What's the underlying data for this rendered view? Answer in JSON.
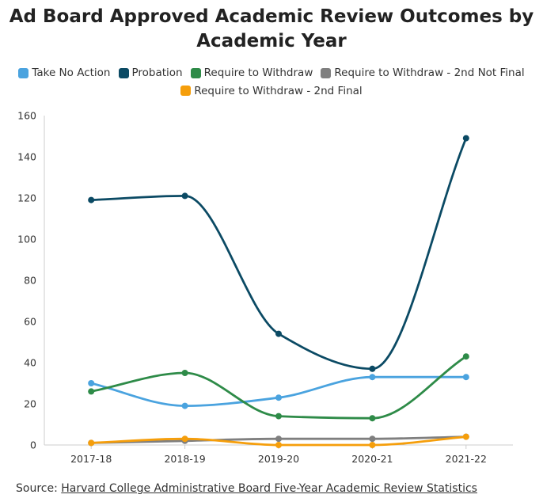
{
  "chart_data": {
    "type": "line",
    "title": "Ad Board Approved Academic Review Outcomes by Academic Year",
    "xlabel": "",
    "ylabel": "",
    "categories": [
      "2017-18",
      "2018-19",
      "2019-20",
      "2020-21",
      "2021-22"
    ],
    "ylim": [
      0,
      160
    ],
    "yticks": [
      0,
      20,
      40,
      60,
      80,
      100,
      120,
      140,
      160
    ],
    "grid": false,
    "legend_position": "top-center",
    "series": [
      {
        "name": "Take No Action",
        "color": "#4aa3df",
        "values": [
          30,
          19,
          23,
          33,
          33
        ]
      },
      {
        "name": "Probation",
        "color": "#0b4a64",
        "values": [
          119,
          121,
          54,
          37,
          149
        ]
      },
      {
        "name": "Require to Withdraw",
        "color": "#2e8b48",
        "values": [
          26,
          35,
          14,
          13,
          43
        ]
      },
      {
        "name": "Require to Withdraw - 2nd Not Final",
        "color": "#7f7f7f",
        "values": [
          1,
          2,
          3,
          3,
          4
        ]
      },
      {
        "name": "Require to Withdraw - 2nd Final",
        "color": "#f59e0b",
        "values": [
          1,
          3,
          0,
          0,
          4
        ]
      }
    ]
  },
  "source": {
    "prefix": "Source: ",
    "link_text": "Harvard College Administrative Board Five-Year Academic Review Statistics"
  }
}
